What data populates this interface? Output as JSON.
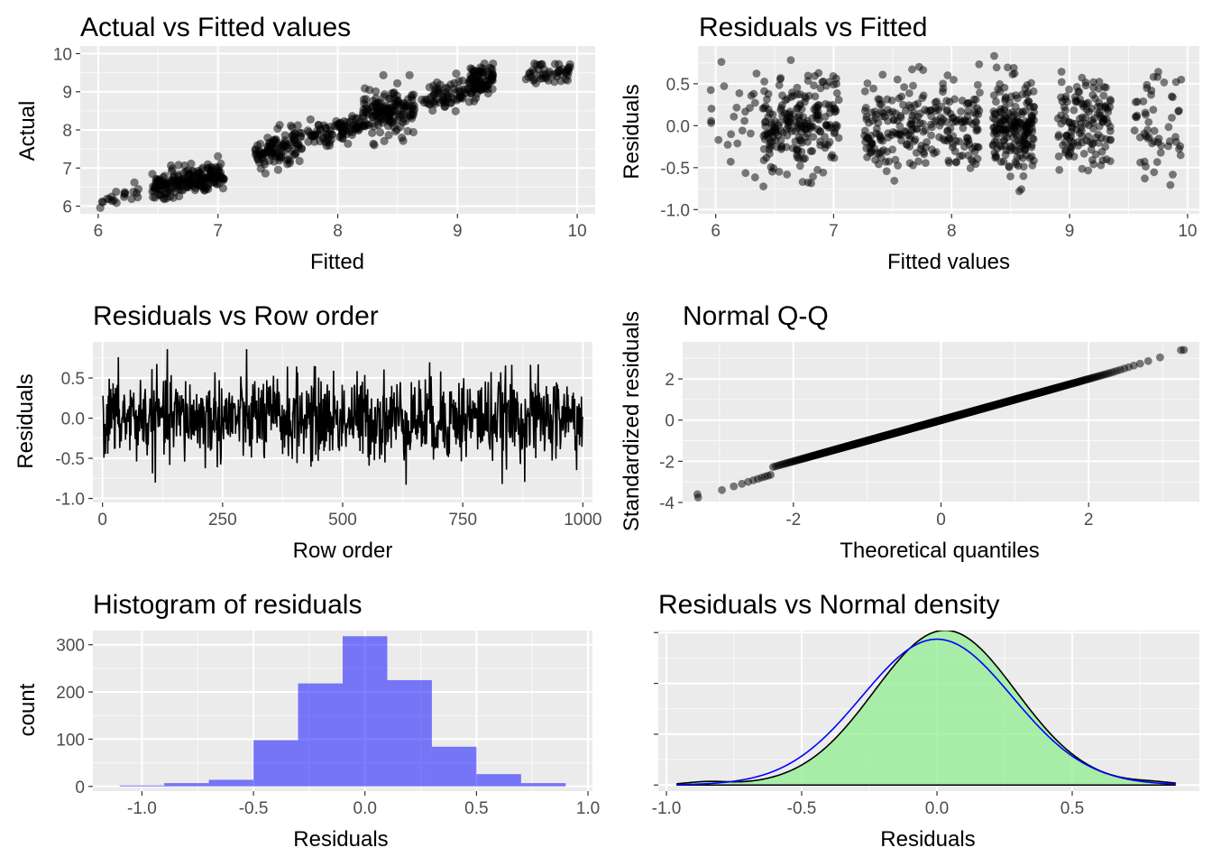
{
  "chart_data": [
    {
      "id": "p1",
      "type": "scatter",
      "title": "Actual vs Fitted values",
      "xlabel": "Fitted",
      "ylabel": "Actual",
      "xlim": [
        5.85,
        10.15
      ],
      "ylim": [
        5.8,
        10.2
      ],
      "xticks": [
        6,
        7,
        8,
        9,
        10
      ],
      "yticks": [
        6,
        7,
        8,
        9,
        10
      ],
      "point_color": "#000000",
      "point_alpha": 0.5,
      "clusters": [
        {
          "x_range": [
            6.0,
            6.35
          ],
          "y_center": 6.25,
          "y_spread": 0.18,
          "n": 20
        },
        {
          "x_range": [
            6.45,
            7.05
          ],
          "y_center": 6.65,
          "y_spread": 0.35,
          "n": 200
        },
        {
          "x_range": [
            7.3,
            7.7
          ],
          "y_center": 7.5,
          "y_spread": 0.4,
          "n": 110
        },
        {
          "x_range": [
            7.75,
            8.2
          ],
          "y_center": 7.95,
          "y_spread": 0.3,
          "n": 90
        },
        {
          "x_range": [
            8.2,
            8.65
          ],
          "y_center": 8.45,
          "y_spread": 0.55,
          "n": 160
        },
        {
          "x_range": [
            8.7,
            9.1
          ],
          "y_center": 8.85,
          "y_spread": 0.35,
          "n": 70
        },
        {
          "x_range": [
            9.1,
            9.3
          ],
          "y_center": 9.3,
          "y_spread": 0.35,
          "n": 90
        },
        {
          "x_range": [
            9.55,
            9.95
          ],
          "y_center": 9.5,
          "y_spread": 0.3,
          "n": 50
        }
      ]
    },
    {
      "id": "p2",
      "type": "scatter",
      "title": "Residuals vs Fitted",
      "xlabel": "Fitted values",
      "ylabel": "Residuals",
      "xlim": [
        5.85,
        10.1
      ],
      "ylim": [
        -1.05,
        0.95
      ],
      "xticks": [
        6,
        7,
        8,
        9,
        10
      ],
      "yticks": [
        -1.0,
        -0.5,
        0.0,
        0.5
      ],
      "ytick_labels": [
        "-1.0",
        "-0.5",
        "0.0",
        "0.5"
      ],
      "point_color": "#000000",
      "point_alpha": 0.5,
      "x_groups": [
        {
          "x_range": [
            5.95,
            6.35
          ],
          "n": 25
        },
        {
          "x_range": [
            6.4,
            7.05
          ],
          "n": 220
        },
        {
          "x_range": [
            7.25,
            7.75
          ],
          "n": 130
        },
        {
          "x_range": [
            7.75,
            8.25
          ],
          "n": 120
        },
        {
          "x_range": [
            8.35,
            8.7
          ],
          "n": 190
        },
        {
          "x_range": [
            8.9,
            9.1
          ],
          "n": 60
        },
        {
          "x_range": [
            9.1,
            9.35
          ],
          "n": 80
        },
        {
          "x_range": [
            9.55,
            9.95
          ],
          "n": 55
        }
      ],
      "residual_sd": 0.28
    },
    {
      "id": "p3",
      "type": "line",
      "title": "Residuals vs Row order",
      "xlabel": "Row order",
      "ylabel": "Residuals",
      "xlim": [
        -20,
        1020
      ],
      "ylim": [
        -1.05,
        0.95
      ],
      "xticks": [
        0,
        250,
        500,
        750,
        1000
      ],
      "yticks": [
        -1.0,
        -0.5,
        0.0,
        0.5
      ],
      "ytick_labels": [
        "-1.0",
        "-0.5",
        "0.0",
        "0.5"
      ],
      "n": 1000,
      "residual_sd": 0.27,
      "line_color": "#000000"
    },
    {
      "id": "p4",
      "type": "scatter",
      "title": "Normal Q-Q",
      "xlabel": "Theoretical quantiles",
      "ylabel": "Standardized residuals",
      "xlim": [
        -3.5,
        3.5
      ],
      "ylim": [
        -4,
        3.8
      ],
      "xticks": [
        -2,
        0,
        2
      ],
      "yticks": [
        -4,
        -2,
        0,
        2
      ],
      "n": 1000,
      "min_point": [
        -3.3,
        -3.6
      ],
      "max_point": [
        3.25,
        3.4
      ],
      "point_color": "#000000",
      "point_alpha": 0.5
    },
    {
      "id": "p5",
      "type": "bar",
      "title": "Histogram of residuals",
      "xlabel": "Residuals",
      "ylabel": "count",
      "xlim": [
        -1.22,
        1.02
      ],
      "ylim": [
        -10,
        330
      ],
      "xticks": [
        -1.0,
        -0.5,
        0.0,
        0.5,
        1.0
      ],
      "xtick_labels": [
        "-1.0",
        "-0.5",
        "0.0",
        "0.5",
        "1.0"
      ],
      "yticks": [
        0,
        100,
        200,
        300
      ],
      "bin_edges": [
        -1.1,
        -0.9,
        -0.7,
        -0.5,
        -0.3,
        -0.1,
        0.1,
        0.3,
        0.5,
        0.7,
        0.9
      ],
      "values": [
        2,
        7,
        14,
        98,
        218,
        318,
        225,
        84,
        26,
        7
      ],
      "fill_color": "#0000ff",
      "fill_alpha": 0.5
    },
    {
      "id": "p6",
      "type": "area",
      "title": "Residuals vs Normal density",
      "xlabel": "Residuals",
      "ylabel": "",
      "xlim": [
        -1.03,
        0.97
      ],
      "ylim": [
        -0.06,
        1.52
      ],
      "xticks": [
        -1.0,
        -0.5,
        0.0,
        0.5
      ],
      "xtick_labels": [
        "-1.0",
        "-0.5",
        "0.0",
        "0.5"
      ],
      "yticks": [
        0,
        0.5,
        1.0,
        1.5
      ],
      "range": [
        -0.96,
        0.88
      ],
      "density_peak": 1.45,
      "density_peak_x": 0.03,
      "normal_mean": 0.0,
      "normal_sd": 0.278,
      "fill_color": "#90ee90",
      "density_line_color": "#000000",
      "normal_line_color": "#0000ff"
    }
  ]
}
